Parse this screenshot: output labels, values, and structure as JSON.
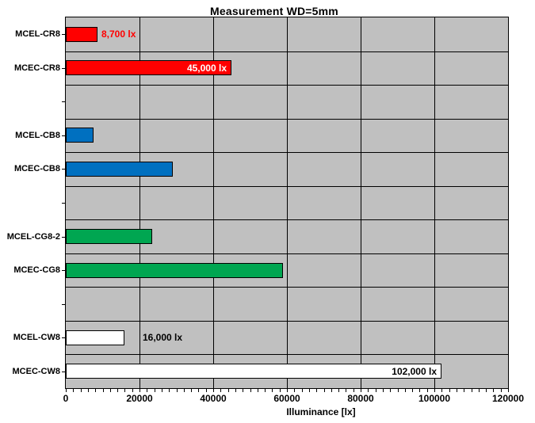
{
  "chart_data": {
    "type": "bar",
    "orientation": "horizontal",
    "title": "Measurement WD=5mm",
    "xlabel": "Illuminance [lx]",
    "xlim": [
      0,
      120000
    ],
    "x_ticks": [
      0,
      20000,
      40000,
      60000,
      80000,
      100000,
      120000
    ],
    "x_minor_tick_interval": 2000,
    "grid": true,
    "legend": false,
    "plot_background": "#c0c0c0",
    "gridline_color": "#000000",
    "bar_border_color": "#000000",
    "categories": [
      "MCEL-CR8",
      "MCEC-CR8",
      "",
      "MCEL-CB8",
      "MCEC-CB8",
      "",
      "MCEL-CG8-2",
      "MCEC-CG8",
      "",
      "MCEL-CW8",
      "MCEC-CW8"
    ],
    "values": [
      8700,
      45000,
      null,
      7500,
      29000,
      null,
      23500,
      59000,
      null,
      16000,
      102000
    ],
    "bar_colors": [
      "#ff0000",
      "#ff0000",
      null,
      "#0070c0",
      "#0070c0",
      null,
      "#00a651",
      "#00a651",
      null,
      "#ffffff",
      "#ffffff"
    ],
    "data_labels": [
      {
        "index": 0,
        "text": "8,700 lx",
        "color": "#ff0000",
        "position": "outside",
        "offset": 5
      },
      {
        "index": 1,
        "text": "45,000 lx",
        "color": "#ffffff",
        "position": "inside-end"
      },
      {
        "index": 9,
        "text": "16,000 lx",
        "color": "#000000",
        "position": "outside",
        "offset": 23
      },
      {
        "index": 10,
        "text": "102,000 lx",
        "color": "#000000",
        "position": "inside-end"
      }
    ]
  }
}
